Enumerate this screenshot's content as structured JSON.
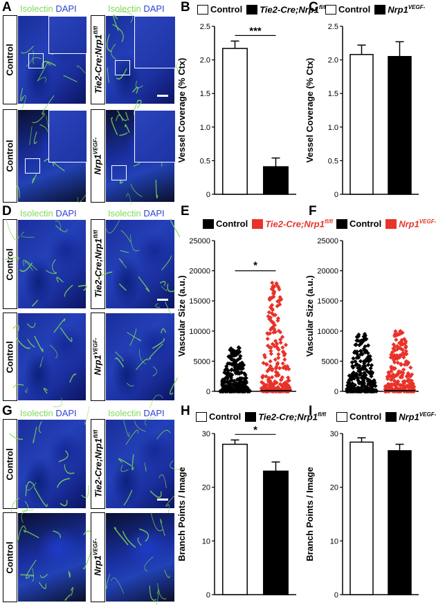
{
  "figure": {
    "panel_labels": [
      "A",
      "B",
      "C",
      "D",
      "E",
      "F",
      "G",
      "H",
      "I"
    ],
    "stain": {
      "isolectin": "Isolectin",
      "dapi": "DAPI"
    },
    "row_labels": {
      "control": "Control",
      "tie2": "Tie2-Cre;Nrp1",
      "tie2_sup": "fl/fl",
      "nrp1": "Nrp1",
      "nrp1_sup": "VEGF-"
    },
    "colors": {
      "isolectin_green": "#7ed957",
      "dapi_blue": "#2c3fd4",
      "knockout_red": "#e8332a",
      "black": "#000000",
      "white": "#ffffff"
    }
  },
  "chart_data": [
    {
      "panel": "B",
      "type": "bar",
      "categories": [
        "Control",
        "Tie2-Cre;Nrp1fl/fl"
      ],
      "legend": [
        "Control",
        "Tie2-Cre;Nrp1",
        "fl/fl"
      ],
      "values": [
        2.17,
        0.41
      ],
      "errors": [
        0.11,
        0.13
      ],
      "fills": [
        "#ffffff",
        "#000000"
      ],
      "ylabel": "Vessel Coverage (% Ctx)",
      "ylim": [
        0,
        2.5
      ],
      "yticks": [
        "0",
        "0.5",
        "1.0",
        "1.5",
        "2.0",
        "2.5"
      ],
      "significance": "***"
    },
    {
      "panel": "C",
      "type": "bar",
      "categories": [
        "Control",
        "Nrp1VEGF-"
      ],
      "legend": [
        "Control",
        "Nrp1",
        "VEGF-"
      ],
      "values": [
        2.08,
        2.05
      ],
      "errors": [
        0.14,
        0.22
      ],
      "fills": [
        "#ffffff",
        "#000000"
      ],
      "ylabel": "Vessel Coverage (% Ctx)",
      "ylim": [
        0,
        2.5
      ],
      "yticks": [
        "0",
        "0.5",
        "1.0",
        "1.5",
        "2.0",
        "2.5"
      ],
      "significance": ""
    },
    {
      "panel": "E",
      "type": "scatter",
      "categories": [
        "Control",
        "Tie2-Cre;Nrp1fl/fl"
      ],
      "legend": [
        "Control",
        "Tie2-Cre;Nrp1",
        "fl/fl"
      ],
      "colors": [
        "#000000",
        "#e8332a"
      ],
      "max_values": [
        7300,
        18000
      ],
      "ylabel": "Vascular Size (a.u.)",
      "ylim": [
        0,
        25000
      ],
      "yticks": [
        "0",
        "5000",
        "10000",
        "15000",
        "20000",
        "25000"
      ],
      "significance": "*"
    },
    {
      "panel": "F",
      "type": "scatter",
      "categories": [
        "Control",
        "Nrp1VEGF-"
      ],
      "legend": [
        "Control",
        "Nrp1",
        "VEGF-"
      ],
      "colors": [
        "#000000",
        "#e8332a"
      ],
      "max_values": [
        9500,
        10000
      ],
      "ylabel": "Vascular Size (a.u.)",
      "ylim": [
        0,
        25000
      ],
      "yticks": [
        "0",
        "5000",
        "10000",
        "15000",
        "20000",
        "25000"
      ],
      "significance": ""
    },
    {
      "panel": "H",
      "type": "bar",
      "categories": [
        "Control",
        "Tie2-Cre;Nrp1fl/fl"
      ],
      "legend": [
        "Control",
        "Tie2-Cre;Nrp1",
        "fl/fl"
      ],
      "values": [
        28.0,
        23.0
      ],
      "errors": [
        0.8,
        1.7
      ],
      "fills": [
        "#ffffff",
        "#000000"
      ],
      "ylabel": "Branch Points / Image",
      "ylim": [
        0,
        30
      ],
      "yticks": [
        "0",
        "10",
        "20",
        "30"
      ],
      "significance": "*"
    },
    {
      "panel": "I",
      "type": "bar",
      "categories": [
        "Control",
        "Nrp1VEGF-"
      ],
      "legend": [
        "Control",
        "Nrp1",
        "VEGF-"
      ],
      "values": [
        28.4,
        26.8
      ],
      "errors": [
        0.8,
        1.2
      ],
      "fills": [
        "#ffffff",
        "#000000"
      ],
      "ylabel": "Branch Points / Image",
      "ylim": [
        0,
        30
      ],
      "yticks": [
        "0",
        "10",
        "20",
        "30"
      ],
      "significance": ""
    }
  ]
}
